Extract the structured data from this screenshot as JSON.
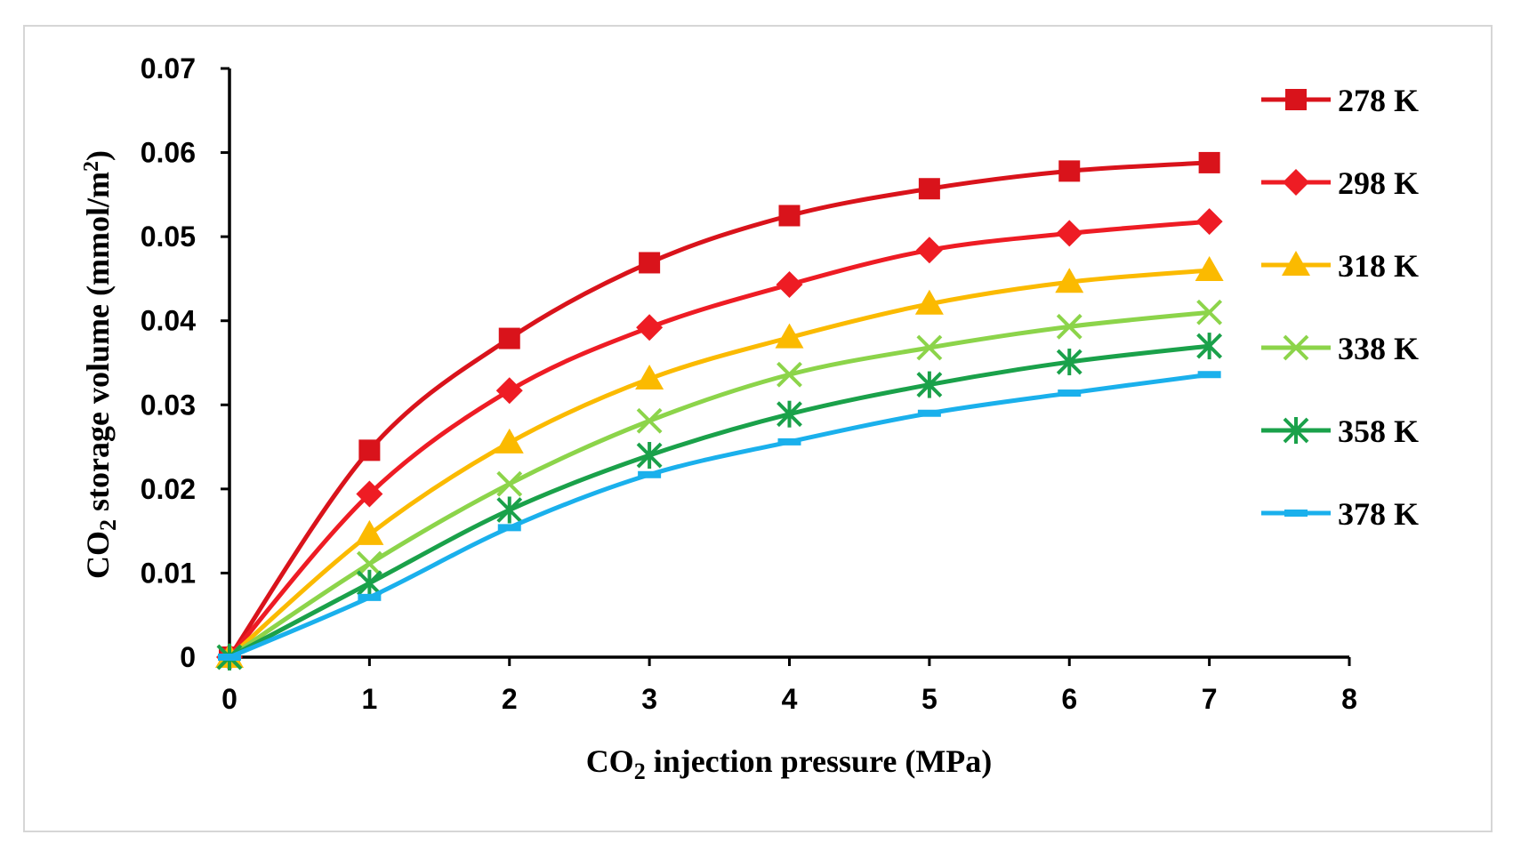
{
  "chart_data": {
    "type": "line",
    "xlabel": {
      "pre": "CO",
      "sub": "2",
      "post": " injection pressure  (MPa)"
    },
    "ylabel": {
      "pre": "CO",
      "sub": "2",
      "mid": " storage volume (mmol/m",
      "sup": "2",
      "post": ")"
    },
    "xlim": [
      0,
      8
    ],
    "ylim": [
      0,
      0.07
    ],
    "xticks": [
      "0",
      "1",
      "2",
      "3",
      "4",
      "5",
      "6",
      "7",
      "8"
    ],
    "yticks": [
      "0",
      "0.01",
      "0.02",
      "0.03",
      "0.04",
      "0.05",
      "0.06",
      "0.07"
    ],
    "x": [
      0,
      1,
      2,
      3,
      4,
      5,
      6,
      7
    ],
    "legend_position": "right",
    "series": [
      {
        "name": "278 K",
        "color": "#d9131b",
        "marker": "square",
        "values": [
          0,
          0.0246,
          0.0379,
          0.0469,
          0.0525,
          0.0557,
          0.0578,
          0.0588
        ]
      },
      {
        "name": "298 K",
        "color": "#ee1c24",
        "marker": "diamond",
        "values": [
          0,
          0.0194,
          0.0317,
          0.0392,
          0.0443,
          0.0484,
          0.0504,
          0.0518
        ]
      },
      {
        "name": "318 K",
        "color": "#fbba00",
        "marker": "triangle",
        "values": [
          0,
          0.0146,
          0.0255,
          0.0331,
          0.038,
          0.042,
          0.0446,
          0.046
        ]
      },
      {
        "name": "338 K",
        "color": "#8cd44a",
        "marker": "x",
        "values": [
          0,
          0.0111,
          0.0206,
          0.0281,
          0.0336,
          0.0368,
          0.0393,
          0.041
        ]
      },
      {
        "name": "358 K",
        "color": "#1aa14a",
        "marker": "asterisk",
        "values": [
          0,
          0.0088,
          0.0175,
          0.024,
          0.0289,
          0.0324,
          0.0351,
          0.037
        ]
      },
      {
        "name": "378 K",
        "color": "#1ab0ec",
        "marker": "dash",
        "values": [
          0,
          0.0071,
          0.0154,
          0.0217,
          0.0256,
          0.029,
          0.0314,
          0.0336
        ]
      }
    ]
  }
}
